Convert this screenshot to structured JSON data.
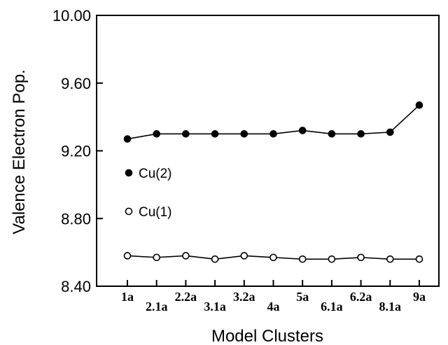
{
  "chart_data": {
    "type": "line",
    "xlabel": "Model Clusters",
    "ylabel": "Valence Electron Pop.",
    "ylim": [
      8.4,
      10.0
    ],
    "yticks": [
      "8.40",
      "8.80",
      "9.20",
      "9.60",
      "10.00"
    ],
    "yticks_values": [
      8.4,
      8.8,
      9.2,
      9.6,
      10.0
    ],
    "categories": [
      "1a",
      "2.1a",
      "2.2a",
      "3.1a",
      "3.2a",
      "4a",
      "5a",
      "6.1a",
      "6.2a",
      "8.1a",
      "9a"
    ],
    "category_label_row": [
      "upper",
      "lower",
      "upper",
      "lower",
      "upper",
      "lower",
      "upper",
      "lower",
      "upper",
      "lower",
      "upper"
    ],
    "grid": false,
    "legend": "left, inside plot",
    "series": [
      {
        "name": "Cu(2)",
        "marker": "filled-circle",
        "values": [
          9.27,
          9.3,
          9.3,
          9.3,
          9.3,
          9.3,
          9.32,
          9.3,
          9.3,
          9.31,
          9.47
        ]
      },
      {
        "name": "Cu(1)",
        "marker": "open-circle",
        "values": [
          8.58,
          8.57,
          8.58,
          8.56,
          8.58,
          8.57,
          8.56,
          8.56,
          8.57,
          8.56,
          8.56
        ]
      }
    ]
  }
}
